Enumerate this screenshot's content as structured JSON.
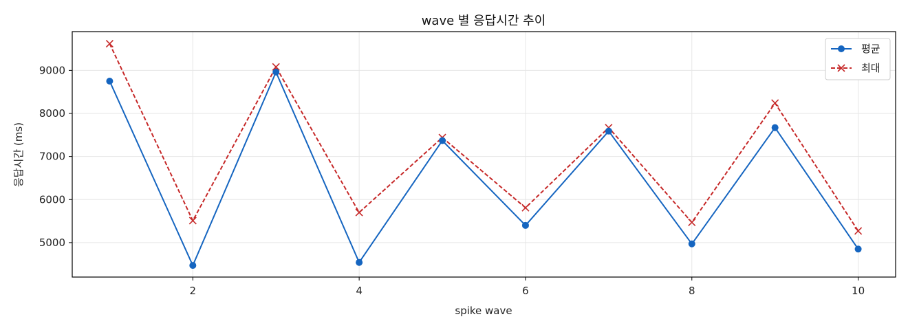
{
  "chart_data": {
    "type": "line",
    "title": "wave 별 응답시간 추이",
    "xlabel": "spike wave",
    "ylabel": "응답시간 (ms)",
    "x": [
      1,
      2,
      3,
      4,
      5,
      6,
      7,
      8,
      9,
      10
    ],
    "xticks": [
      2,
      4,
      6,
      8,
      10
    ],
    "yticks": [
      5000,
      6000,
      7000,
      8000,
      9000
    ],
    "xlim": [
      0.55,
      10.45
    ],
    "ylim": [
      4200,
      9900
    ],
    "grid": true,
    "legend_position": "top-right",
    "series": [
      {
        "name": "평균",
        "color": "#1565c0",
        "line_style": "solid",
        "marker": "circle",
        "values": [
          8750,
          4470,
          8960,
          4540,
          7370,
          5400,
          7590,
          4970,
          7670,
          4850
        ]
      },
      {
        "name": "최대",
        "color": "#c62828",
        "line_style": "dashed",
        "marker": "x",
        "values": [
          9620,
          5510,
          9080,
          5700,
          7440,
          5810,
          7670,
          5470,
          8240,
          5270
        ]
      }
    ]
  }
}
